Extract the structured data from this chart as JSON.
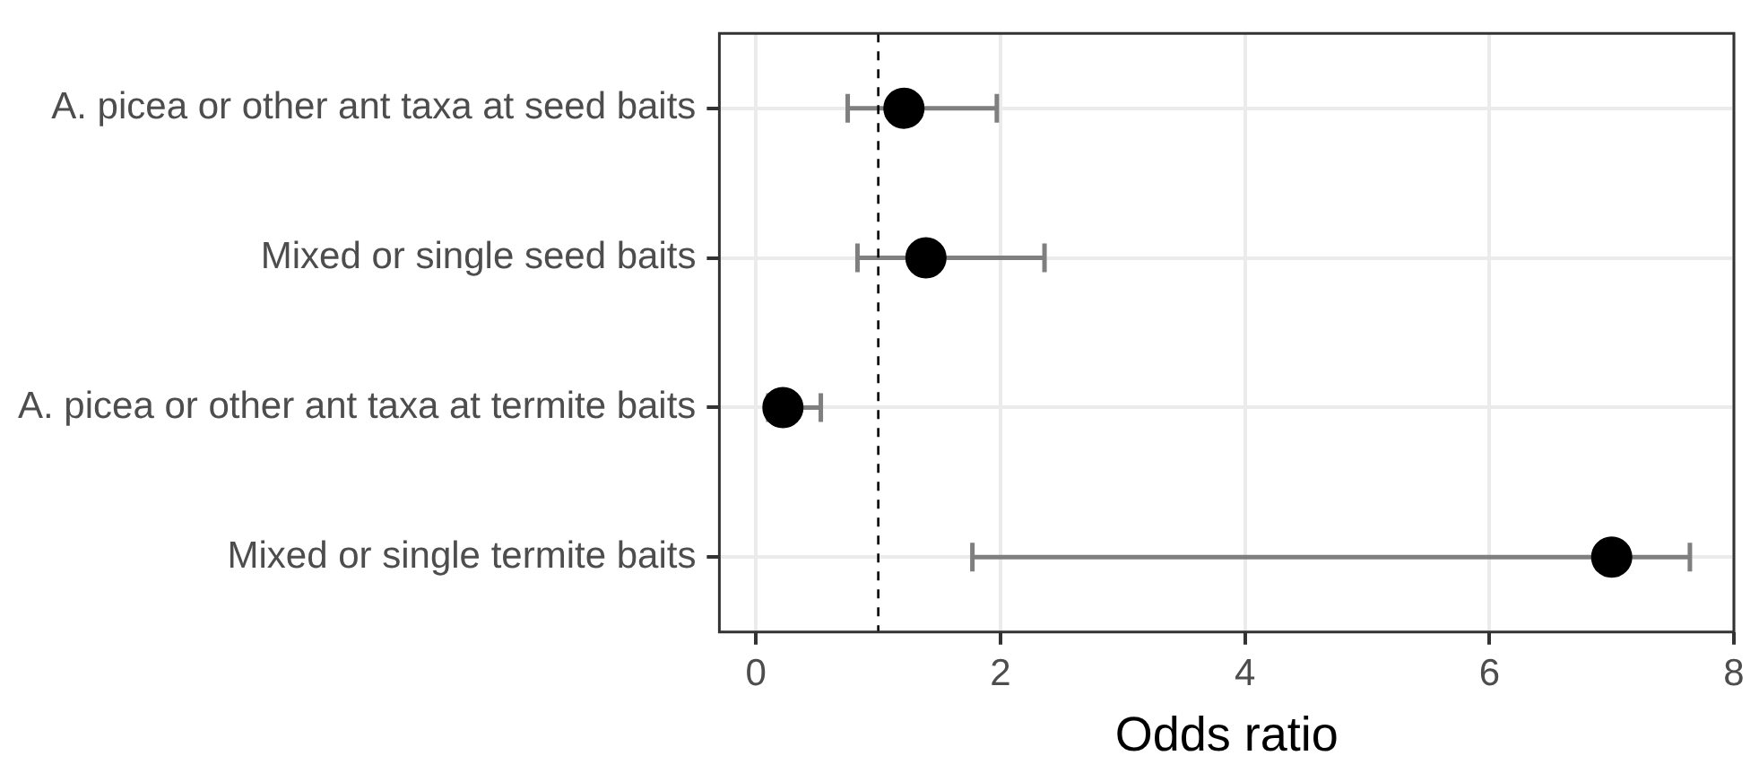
{
  "chart_data": {
    "type": "scatter",
    "orientation": "horizontal",
    "xlabel": "Odds ratio",
    "categories": [
      "A. picea or other ant taxa at seed baits",
      "Mixed or single seed baits",
      "A. picea or other ant taxa at termite baits",
      "Mixed or single termite baits"
    ],
    "values": [
      1.21,
      1.39,
      0.22,
      7.0
    ],
    "errors": [
      [
        0.75,
        1.97
      ],
      [
        0.83,
        2.36
      ],
      [
        0.1,
        0.53
      ],
      [
        1.77,
        7.64
      ]
    ],
    "color": "#000000",
    "xlim": [
      -0.3,
      8
    ],
    "xticks": [
      0,
      2,
      4,
      6,
      8
    ],
    "grid": true,
    "marker": "circle",
    "legend": false,
    "ref_lines": [
      {
        "axis": "x",
        "value": 1,
        "line_style": "dashed",
        "color": "#000000"
      }
    ]
  }
}
